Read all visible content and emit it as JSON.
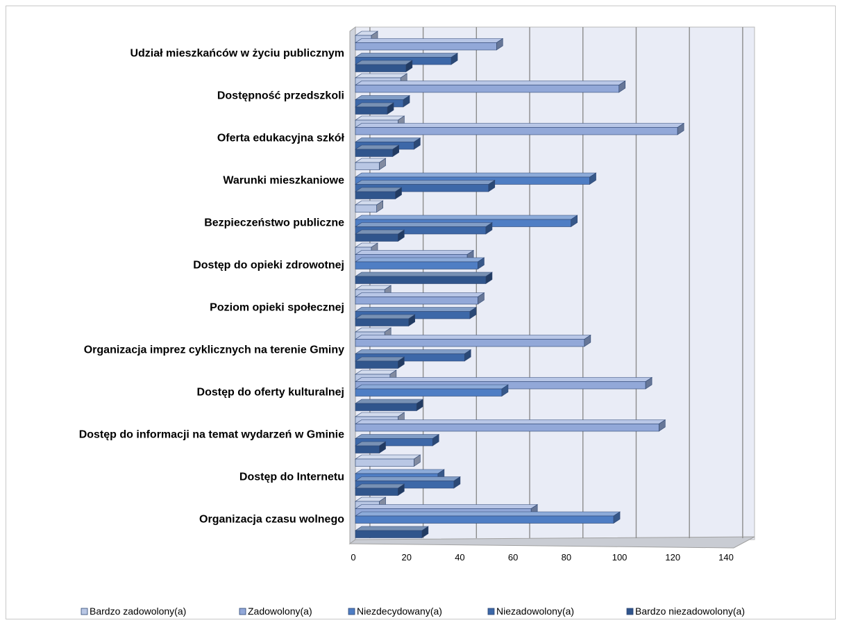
{
  "chart_data": {
    "type": "bar",
    "orientation": "horizontal",
    "style": "3d-clustered",
    "title": "",
    "categories": [
      "Udział mieszkańców w życiu publicznym",
      "Dostępność przedszkoli",
      "Oferta edukacyjna szkół",
      "Warunki mieszkaniowe",
      "Bezpieczeństwo publiczne",
      "Dostęp do opieki zdrowotnej",
      "Poziom opieki społecznej",
      "Organizacja imprez cyklicznych na terenie Gminy",
      "Dostęp do oferty kulturalnej",
      "Dostęp do informacji na temat wydarzeń w Gminie",
      "Dostęp do Internetu",
      "Organizacja czasu wolnego"
    ],
    "series": [
      {
        "name": "Bardzo zadowolony(a)",
        "color": "#b9c7e4",
        "values": [
          6,
          17,
          16,
          9,
          8,
          6,
          11,
          11,
          13,
          16,
          22,
          9
        ]
      },
      {
        "name": "Zadowolony(a)",
        "color": "#92a8d8",
        "values": [
          53,
          99,
          121,
          0,
          0,
          42,
          46,
          86,
          109,
          114,
          0,
          66
        ]
      },
      {
        "name": "Niezdecydowany(a)",
        "color": "#4f7ec4",
        "values": [
          0,
          0,
          0,
          88,
          81,
          46,
          0,
          0,
          55,
          0,
          31,
          97
        ]
      },
      {
        "name": "Niezadowolony(a)",
        "color": "#3d68a8",
        "values": [
          36,
          18,
          22,
          50,
          49,
          0,
          43,
          41,
          0,
          29,
          37,
          0
        ]
      },
      {
        "name": "Bardzo niezadowolony(a)",
        "color": "#30558c",
        "values": [
          19,
          12,
          14,
          15,
          16,
          49,
          20,
          16,
          23,
          9,
          16,
          25
        ]
      }
    ],
    "xaxis": {
      "min": 0,
      "max": 140,
      "step": 20,
      "ticks": [
        "0",
        "20",
        "40",
        "60",
        "80",
        "100",
        "120",
        "140"
      ]
    },
    "grid": true,
    "legend": "bottom"
  }
}
